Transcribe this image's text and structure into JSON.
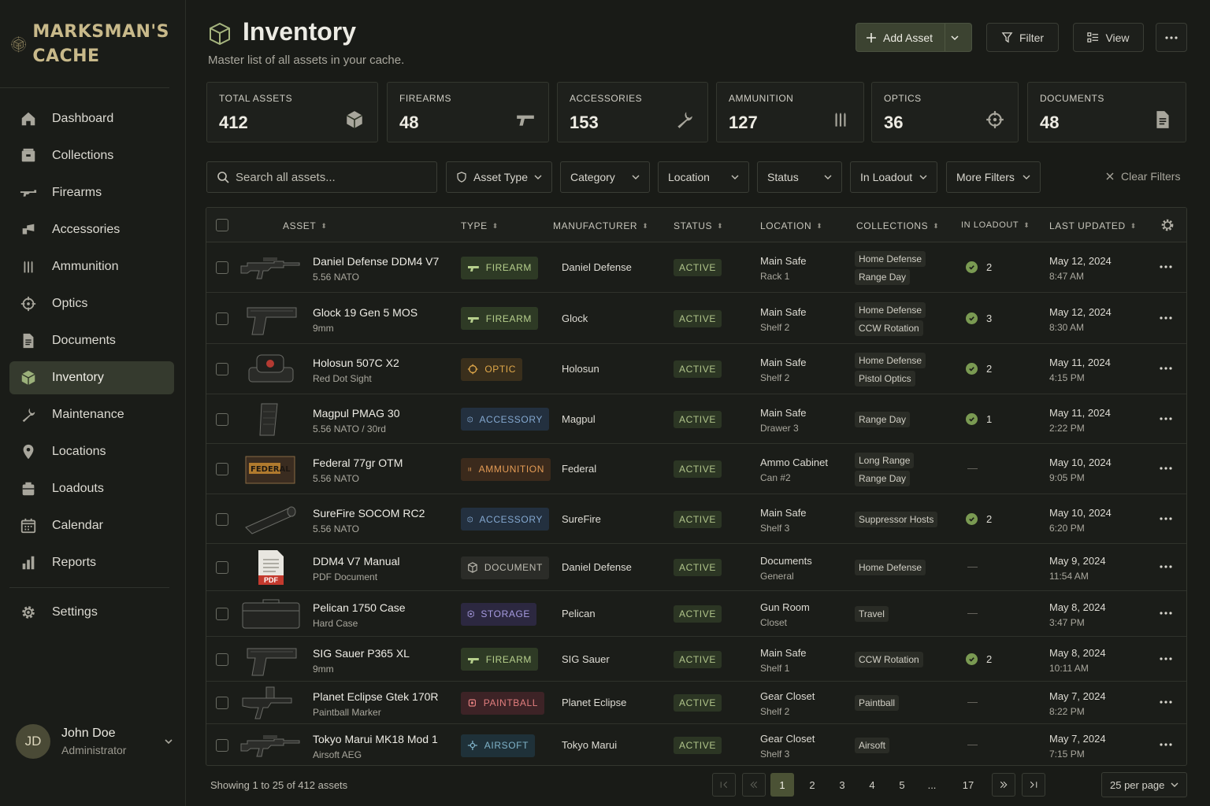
{
  "brand": {
    "line1": "MARKSMAN'S",
    "line2": "CACHE"
  },
  "nav": [
    {
      "label": "Dashboard",
      "icon": "home-icon"
    },
    {
      "label": "Collections",
      "icon": "collections-icon"
    },
    {
      "label": "Firearms",
      "icon": "rifle-icon"
    },
    {
      "label": "Accessories",
      "icon": "accessory-icon"
    },
    {
      "label": "Ammunition",
      "icon": "ammo-icon"
    },
    {
      "label": "Optics",
      "icon": "crosshair-icon"
    },
    {
      "label": "Documents",
      "icon": "document-icon"
    },
    {
      "label": "Inventory",
      "icon": "cube-icon",
      "active": true
    },
    {
      "label": "Maintenance",
      "icon": "wrench-icon"
    },
    {
      "label": "Locations",
      "icon": "pin-icon"
    },
    {
      "label": "Loadouts",
      "icon": "loadout-icon"
    },
    {
      "label": "Calendar",
      "icon": "calendar-icon"
    },
    {
      "label": "Reports",
      "icon": "bar-chart-icon"
    }
  ],
  "settings_label": "Settings",
  "user": {
    "initials": "JD",
    "name": "John Doe",
    "role": "Administrator"
  },
  "header": {
    "title": "Inventory",
    "subtitle": "Master list of all assets in your cache."
  },
  "actions": {
    "add": "Add Asset",
    "filter": "Filter",
    "view": "View"
  },
  "stats": [
    {
      "label": "TOTAL ASSETS",
      "value": "412",
      "icon": "cube-icon"
    },
    {
      "label": "FIREARMS",
      "value": "48",
      "icon": "pistol-icon"
    },
    {
      "label": "ACCESSORIES",
      "value": "153",
      "icon": "wrench-icon"
    },
    {
      "label": "AMMUNITION",
      "value": "127",
      "icon": "ammo-icon"
    },
    {
      "label": "OPTICS",
      "value": "36",
      "icon": "crosshair-icon"
    },
    {
      "label": "DOCUMENTS",
      "value": "48",
      "icon": "document-icon"
    }
  ],
  "search": {
    "placeholder": "Search all assets..."
  },
  "filters": {
    "asset_type": "Asset Type",
    "category": "Category",
    "location": "Location",
    "status": "Status",
    "in_loadout": "In Loadout",
    "more": "More Filters",
    "clear": "Clear Filters"
  },
  "columns": {
    "asset": "ASSET",
    "type": "TYPE",
    "manufacturer": "MANUFACTURER",
    "status": "STATUS",
    "location": "LOCATION",
    "collections": "COLLECTIONS",
    "in_loadout": "IN LOADOUT",
    "last_updated": "LAST UPDATED"
  },
  "rows": [
    {
      "name": "Daniel Defense DDM4 V7",
      "sub": "5.56 NATO",
      "type": "FIREARM",
      "kind": "firearm",
      "thumb": "rifle",
      "mfr": "Daniel Defense",
      "status": "ACTIVE",
      "loc1": "Main Safe",
      "loc2": "Rack 1",
      "collections": [
        "Home Defense",
        "Range Day"
      ],
      "loadout": "2",
      "date": "May 12, 2024",
      "time": "8:47 AM"
    },
    {
      "name": "Glock 19 Gen 5 MOS",
      "sub": "9mm",
      "type": "FIREARM",
      "kind": "firearm",
      "thumb": "pistol",
      "mfr": "Glock",
      "status": "ACTIVE",
      "loc1": "Main Safe",
      "loc2": "Shelf 2",
      "collections": [
        "Home Defense",
        "CCW Rotation"
      ],
      "loadout": "3",
      "date": "May 12, 2024",
      "time": "8:30 AM"
    },
    {
      "name": "Holosun 507C X2",
      "sub": "Red Dot Sight",
      "type": "OPTIC",
      "kind": "optic",
      "thumb": "optic",
      "mfr": "Holosun",
      "status": "ACTIVE",
      "loc1": "Main Safe",
      "loc2": "Shelf 2",
      "collections": [
        "Home Defense",
        "Pistol Optics"
      ],
      "loadout": "2",
      "date": "May 11, 2024",
      "time": "4:15 PM"
    },
    {
      "name": "Magpul PMAG 30",
      "sub": "5.56 NATO / 30rd",
      "type": "ACCESSORY",
      "kind": "accessory",
      "thumb": "magazine",
      "mfr": "Magpul",
      "status": "ACTIVE",
      "loc1": "Main Safe",
      "loc2": "Drawer 3",
      "collections": [
        "Range Day"
      ],
      "loadout": "1",
      "date": "May 11, 2024",
      "time": "2:22 PM"
    },
    {
      "name": "Federal 77gr OTM",
      "sub": "5.56 NATO",
      "type": "AMMUNITION",
      "kind": "ammunition",
      "thumb": "ammobox",
      "mfr": "Federal",
      "status": "ACTIVE",
      "loc1": "Ammo Cabinet",
      "loc2": "Can #2",
      "collections": [
        "Long Range",
        "Range Day"
      ],
      "loadout": "",
      "date": "May 10, 2024",
      "time": "9:05 PM"
    },
    {
      "name": "SureFire SOCOM RC2",
      "sub": "5.56 NATO",
      "type": "ACCESSORY",
      "kind": "accessory",
      "thumb": "suppressor",
      "mfr": "SureFire",
      "status": "ACTIVE",
      "loc1": "Main Safe",
      "loc2": "Shelf 3",
      "collections": [
        "Suppressor Hosts"
      ],
      "loadout": "2",
      "date": "May 10, 2024",
      "time": "6:20 PM"
    },
    {
      "name": "DDM4 V7 Manual",
      "sub": "PDF Document",
      "type": "DOCUMENT",
      "kind": "document",
      "thumb": "pdf",
      "thumb_text": "PDF",
      "mfr": "Daniel Defense",
      "status": "ACTIVE",
      "loc1": "Documents",
      "loc2": "General",
      "collections": [
        "Home Defense"
      ],
      "loadout": "",
      "date": "May 9, 2024",
      "time": "11:54 AM"
    },
    {
      "name": "Pelican 1750 Case",
      "sub": "Hard Case",
      "type": "STORAGE",
      "kind": "storage",
      "thumb": "case",
      "mfr": "Pelican",
      "status": "ACTIVE",
      "loc1": "Gun Room",
      "loc2": "Closet",
      "collections": [
        "Travel"
      ],
      "loadout": "",
      "date": "May 8, 2024",
      "time": "3:47 PM"
    },
    {
      "name": "SIG Sauer P365 XL",
      "sub": "9mm",
      "type": "FIREARM",
      "kind": "firearm",
      "thumb": "pistol",
      "mfr": "SIG Sauer",
      "status": "ACTIVE",
      "loc1": "Main Safe",
      "loc2": "Shelf 1",
      "collections": [
        "CCW Rotation"
      ],
      "loadout": "2",
      "date": "May 8, 2024",
      "time": "10:11 AM"
    },
    {
      "name": "Planet Eclipse Gtek 170R",
      "sub": "Paintball Marker",
      "type": "PAINTBALL",
      "kind": "paintball",
      "thumb": "marker",
      "mfr": "Planet Eclipse",
      "status": "ACTIVE",
      "loc1": "Gear Closet",
      "loc2": "Shelf 2",
      "collections": [
        "Paintball"
      ],
      "loadout": "",
      "date": "May 7, 2024",
      "time": "8:22 PM"
    },
    {
      "name": "Tokyo Marui MK18 Mod 1",
      "sub": "Airsoft AEG",
      "type": "AIRSOFT",
      "kind": "airsoft",
      "thumb": "rifle",
      "mfr": "Tokyo Marui",
      "status": "ACTIVE",
      "loc1": "Gear Closet",
      "loc2": "Shelf 3",
      "collections": [
        "Airsoft"
      ],
      "loadout": "",
      "date": "May 7, 2024",
      "time": "7:15 PM"
    }
  ],
  "footer": {
    "showing": "Showing 1 to 25 of 412 assets",
    "pages": [
      "1",
      "2",
      "3",
      "4",
      "5",
      "...",
      "17"
    ],
    "current_page": "1",
    "per_page": "25 per page"
  },
  "colors": {
    "accent": "#4b5235",
    "firearm": "#b6cf8c",
    "optic": "#e0a84a",
    "accessory": "#84a8d0",
    "ammunition": "#e39b55",
    "document": "#bdbbb1",
    "storage": "#a69be0",
    "paintball": "#e27e7e",
    "airsoft": "#7fb3c9"
  }
}
